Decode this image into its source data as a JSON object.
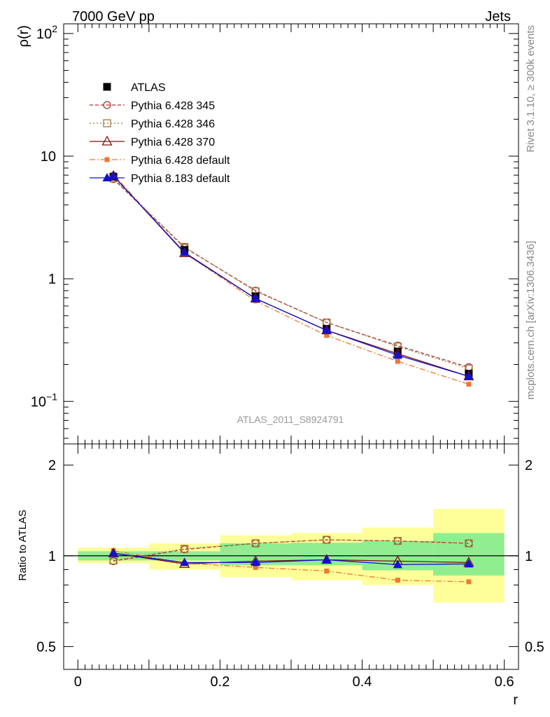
{
  "header": {
    "left": "7000 GeV pp",
    "right": "Jets"
  },
  "side": {
    "rivet": "Rivet 3.1.10, ≥ 300k events",
    "mcplots": "mcplots.cern.ch [arXiv:1306.3436]"
  },
  "chart_data": [
    {
      "type": "line",
      "id": "main",
      "title": "",
      "analysis_label": "ATLAS_2011_S8924791",
      "xlabel": "r",
      "ylabel": "ρ(r)",
      "yscale": "log",
      "xlim": [
        -0.02,
        0.62
      ],
      "ylim": [
        0.045,
        120
      ],
      "x": [
        0.05,
        0.15,
        0.25,
        0.35,
        0.45,
        0.55
      ],
      "y_ticks": [
        {
          "value": 100,
          "base": "10",
          "exp": "2"
        },
        {
          "value": 10,
          "base": "10",
          "exp": ""
        },
        {
          "value": 1,
          "base": "1",
          "exp": ""
        },
        {
          "value": 0.1,
          "base": "10",
          "exp": "−1"
        }
      ],
      "series": [
        {
          "key": "atlas",
          "name": "ATLAS",
          "values": [
            6.8,
            1.72,
            0.72,
            0.39,
            0.255,
            0.168
          ],
          "color": "#000000"
        },
        {
          "key": "p345",
          "name": "Pythia 6.428 345",
          "values": [
            6.5,
            1.8,
            0.8,
            0.44,
            0.285,
            0.19
          ],
          "color": "#b03030"
        },
        {
          "key": "p346",
          "name": "Pythia 6.428 346",
          "values": [
            6.6,
            1.82,
            0.79,
            0.44,
            0.28,
            0.185
          ],
          "color": "#a07840"
        },
        {
          "key": "p370",
          "name": "Pythia 6.428 370",
          "values": [
            6.9,
            1.62,
            0.69,
            0.38,
            0.245,
            0.16
          ],
          "color": "#801010"
        },
        {
          "key": "pdef",
          "name": "Pythia 6.428 default",
          "values": [
            7.1,
            1.63,
            0.66,
            0.345,
            0.212,
            0.138
          ],
          "color": "#f07830"
        },
        {
          "key": "p8",
          "name": "Pythia 8.183 default",
          "values": [
            6.9,
            1.64,
            0.69,
            0.38,
            0.238,
            0.16
          ],
          "color": "#1010d0"
        }
      ]
    },
    {
      "type": "line",
      "id": "ratio",
      "ylabel": "Ratio to ATLAS",
      "xlabel": "r",
      "yscale": "log",
      "xlim": [
        -0.02,
        0.62
      ],
      "ylim": [
        0.42,
        2.35
      ],
      "x": [
        0.05,
        0.15,
        0.25,
        0.35,
        0.45,
        0.55
      ],
      "x_ticks": [
        {
          "value": 0,
          "label": "0"
        },
        {
          "value": 0.2,
          "label": "0.2"
        },
        {
          "value": 0.4,
          "label": "0.4"
        },
        {
          "value": 0.6,
          "label": "0.6"
        }
      ],
      "y_ticks": [
        {
          "value": 2,
          "label": "2"
        },
        {
          "value": 1,
          "label": "1"
        },
        {
          "value": 0.5,
          "label": "0.5"
        }
      ],
      "bands": {
        "bins": [
          [
            0.0,
            0.1
          ],
          [
            0.1,
            0.2
          ],
          [
            0.2,
            0.3
          ],
          [
            0.3,
            0.4
          ],
          [
            0.4,
            0.5
          ],
          [
            0.5,
            0.6
          ]
        ],
        "green_lo": [
          0.965,
          0.965,
          0.93,
          0.93,
          0.895,
          0.86
        ],
        "green_hi": [
          1.035,
          1.035,
          1.1,
          1.105,
          1.12,
          1.19
        ],
        "yellow_lo": [
          0.945,
          0.9,
          0.85,
          0.83,
          0.8,
          0.7
        ],
        "yellow_hi": [
          1.065,
          1.1,
          1.17,
          1.19,
          1.24,
          1.43
        ],
        "green_color": "#90ee90",
        "yellow_color": "#ffff99"
      },
      "series": [
        {
          "key": "p345",
          "name": "Pythia 6.428 345",
          "values": [
            0.96,
            1.05,
            1.1,
            1.13,
            1.12,
            1.1
          ],
          "color": "#b03030"
        },
        {
          "key": "p346",
          "name": "Pythia 6.428 346",
          "values": [
            0.965,
            1.055,
            1.1,
            1.13,
            1.12,
            1.1
          ],
          "color": "#a07840"
        },
        {
          "key": "p370",
          "name": "Pythia 6.428 370",
          "values": [
            1.02,
            0.94,
            0.96,
            0.97,
            0.96,
            0.95
          ],
          "color": "#801010"
        },
        {
          "key": "pdef",
          "name": "Pythia 6.428 default",
          "values": [
            1.04,
            0.945,
            0.915,
            0.89,
            0.83,
            0.82
          ],
          "color": "#f07830"
        },
        {
          "key": "p8",
          "name": "Pythia 8.183 default",
          "values": [
            1.02,
            0.95,
            0.95,
            0.97,
            0.935,
            0.94
          ],
          "color": "#1010d0"
        }
      ]
    }
  ]
}
